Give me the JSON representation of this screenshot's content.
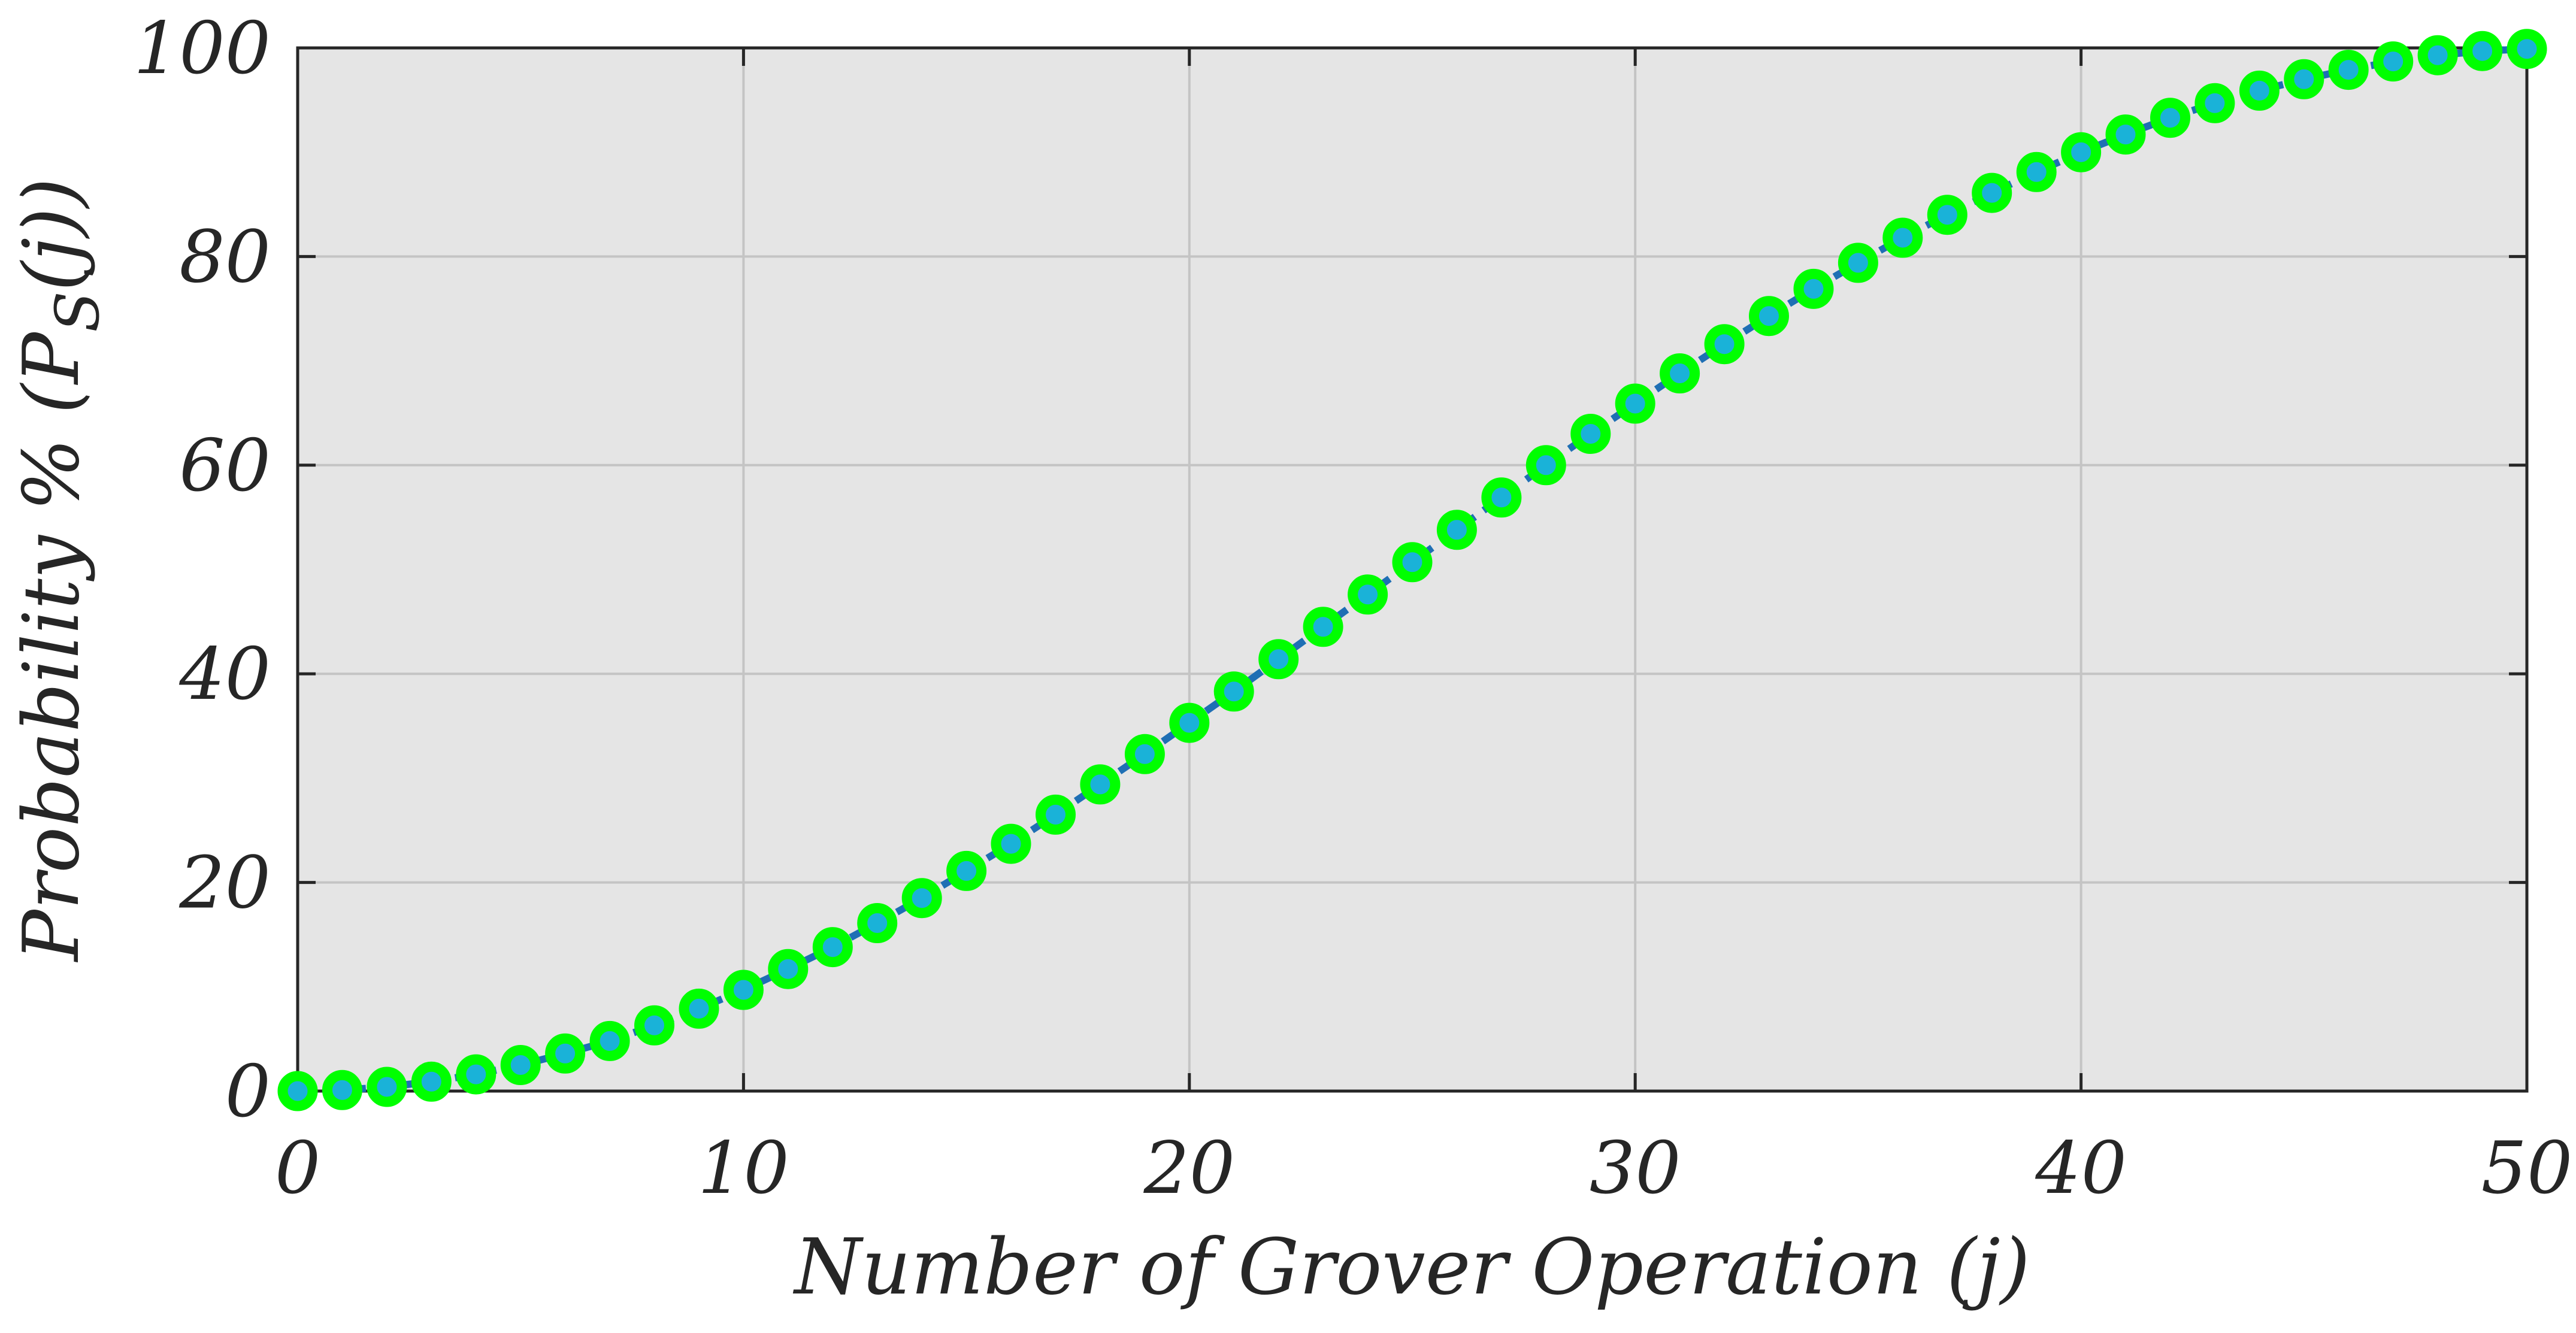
{
  "chart_data": {
    "type": "line",
    "title": "",
    "xlabel": "Number of Grover Operation (j)",
    "ylabel": {
      "prefix": "Probability % (P",
      "subscript": "S",
      "suffix": "(j))"
    },
    "xlim": [
      0,
      50
    ],
    "ylim": [
      0,
      100
    ],
    "xticks": [
      0,
      10,
      20,
      30,
      40,
      50
    ],
    "yticks": [
      0,
      20,
      40,
      60,
      80,
      100
    ],
    "grid": true,
    "colors": {
      "plot_background": "#e5e5e5",
      "grid": "#c4c4c4",
      "axes": "#262626",
      "line": "#1f6fb4",
      "marker_edge": "#00ff00",
      "marker_face": "#1ab2d8"
    },
    "series": [
      {
        "x": [
          0,
          1,
          2,
          3,
          4,
          5,
          6,
          7,
          8,
          9,
          10,
          11,
          12,
          13,
          14,
          15,
          16,
          17,
          18,
          19,
          20,
          21,
          22,
          23,
          24,
          25,
          26,
          27,
          28,
          29,
          30,
          31,
          32,
          33,
          34,
          35,
          36,
          37,
          38,
          39,
          40,
          41,
          42,
          43,
          44,
          45,
          46,
          47,
          48,
          49,
          50
        ],
        "y": [
          0.0,
          0.1,
          0.4,
          0.9,
          1.6,
          2.5,
          3.6,
          4.8,
          6.3,
          7.9,
          9.7,
          11.7,
          13.8,
          16.1,
          18.5,
          21.1,
          23.7,
          26.5,
          29.4,
          32.3,
          35.3,
          38.3,
          41.4,
          44.5,
          47.6,
          50.7,
          53.8,
          56.9,
          60.0,
          63.0,
          65.9,
          68.8,
          71.6,
          74.3,
          76.9,
          79.4,
          81.8,
          84.0,
          86.1,
          88.1,
          90.0,
          91.7,
          93.3,
          94.7,
          95.9,
          97.0,
          97.9,
          98.7,
          99.3,
          99.7,
          99.9
        ]
      }
    ]
  }
}
